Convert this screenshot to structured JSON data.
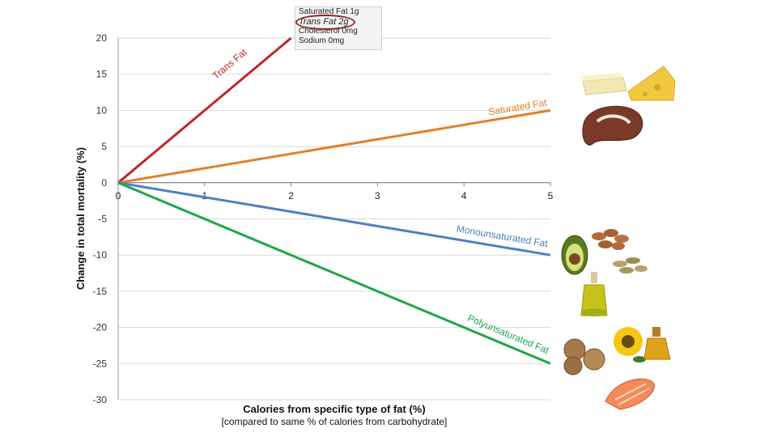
{
  "chart_data": {
    "type": "line",
    "xlabel": "Calories from specific type of fat (%)",
    "xlabel_sub": "[compared to same % of calories from carbohydrate]",
    "ylabel": "Change in total mortality (%)",
    "xlim": [
      0,
      5
    ],
    "ylim": [
      -30,
      20
    ],
    "x_ticks": [
      0,
      1,
      2,
      3,
      4,
      5
    ],
    "y_ticks": [
      20,
      15,
      10,
      5,
      0,
      -5,
      -10,
      -15,
      -20,
      -25,
      -30
    ],
    "grid": "horizontal",
    "series": [
      {
        "name": "Trans Fat",
        "color": "#c0262d",
        "x": [
          0,
          2
        ],
        "y": [
          0,
          20
        ]
      },
      {
        "name": "Saturated Fat",
        "color": "#e2802b",
        "x": [
          0,
          5
        ],
        "y": [
          0,
          10
        ]
      },
      {
        "name": "Monounsaturated Fat",
        "color": "#4f7fbf",
        "x": [
          0,
          5
        ],
        "y": [
          0,
          -10
        ]
      },
      {
        "name": "Polyunsaturated Fat",
        "color": "#1fa64a",
        "x": [
          0,
          5
        ],
        "y": [
          0,
          -25
        ]
      }
    ]
  },
  "nutrition_label": {
    "lines": [
      "Saturated Fat 1g",
      "Trans Fat 2g",
      "Cholesterol 0mg",
      "Sodium 0mg"
    ]
  },
  "images": {
    "saturated": [
      "butter-icon",
      "cheese-icon",
      "meat-icon"
    ],
    "monounsaturated": [
      "avocado-icon",
      "almonds-icon",
      "seeds-icon",
      "olive-oil-icon"
    ],
    "polyunsaturated": [
      "walnuts-icon",
      "sunflower-icon",
      "oil-bottle-icon",
      "salmon-icon"
    ]
  }
}
